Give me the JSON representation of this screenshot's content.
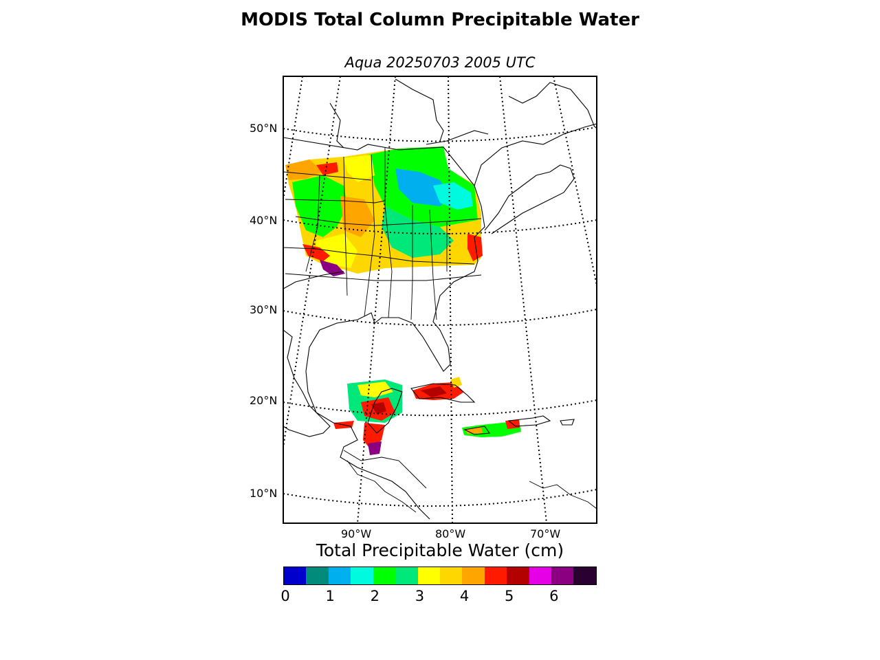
{
  "title": "MODIS Total Column Precipitable Water",
  "subtitle": "Aqua 20250703 2005 UTC",
  "map": {
    "lat_labels": [
      "50°N",
      "40°N",
      "30°N",
      "20°N",
      "10°N"
    ],
    "lon_labels": [
      "90°W",
      "80°W",
      "70°W"
    ]
  },
  "colorbar": {
    "title": "Total Precipitable Water (cm)",
    "colors": [
      "#0000cd",
      "#008b7a",
      "#00b0ee",
      "#00fadf",
      "#00ff00",
      "#00e87a",
      "#ffff00",
      "#ffd700",
      "#ffa500",
      "#ff1a00",
      "#b30000",
      "#e600e6",
      "#8b0080",
      "#2a0030"
    ],
    "ticks": [
      "0",
      "1",
      "2",
      "3",
      "4",
      "5",
      "6"
    ]
  }
}
